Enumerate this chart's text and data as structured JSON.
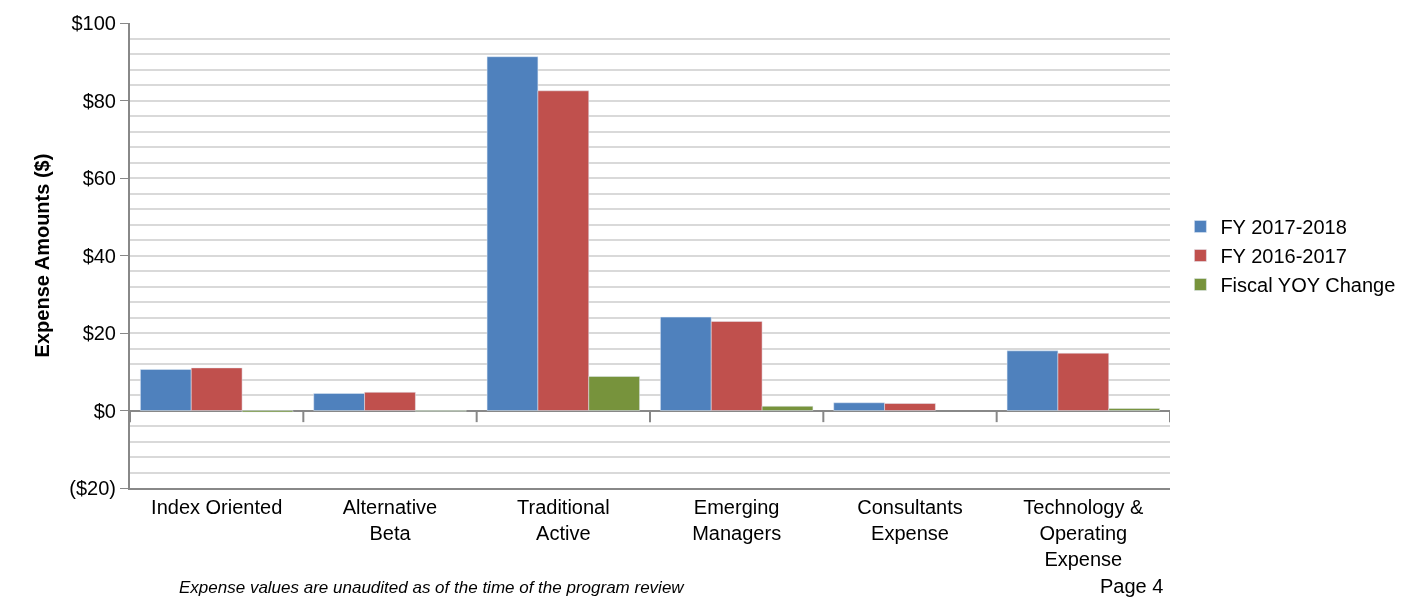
{
  "chart_data": {
    "type": "bar",
    "ylabel": "Expense Amounts ($)",
    "categories": [
      "Index Oriented",
      "Alternative\nBeta",
      "Traditional\nActive",
      "Emerging\nManagers",
      "Consultants\nExpense",
      "Technology &\nOperating\nExpense"
    ],
    "series": [
      {
        "name": "FY 2017-2018",
        "color": "#4f81bd",
        "values": [
          10.6,
          4.4,
          91.3,
          24.1,
          2.0,
          15.4
        ]
      },
      {
        "name": "FY 2016-2017",
        "color": "#c0504d",
        "values": [
          11.0,
          4.7,
          82.5,
          23.0,
          1.8,
          14.8
        ]
      },
      {
        "name": "Fiscal YOY Change",
        "color": "#77933c",
        "values": [
          -0.4,
          -0.2,
          8.8,
          1.1,
          null,
          0.5
        ]
      }
    ],
    "ylim": [
      -20,
      100
    ],
    "yticks": [
      {
        "value": -20,
        "label": "($20)"
      },
      {
        "value": 0,
        "label": "$0"
      },
      {
        "value": 20,
        "label": "$20"
      },
      {
        "value": 40,
        "label": "$40"
      },
      {
        "value": 60,
        "label": "$60"
      },
      {
        "value": 80,
        "label": "$80"
      },
      {
        "value": 100,
        "label": "$100"
      }
    ],
    "grid": "y",
    "legend": "right",
    "annotations": [
      "Expense values are unaudited as of the time of the program review",
      "Page 4"
    ]
  }
}
